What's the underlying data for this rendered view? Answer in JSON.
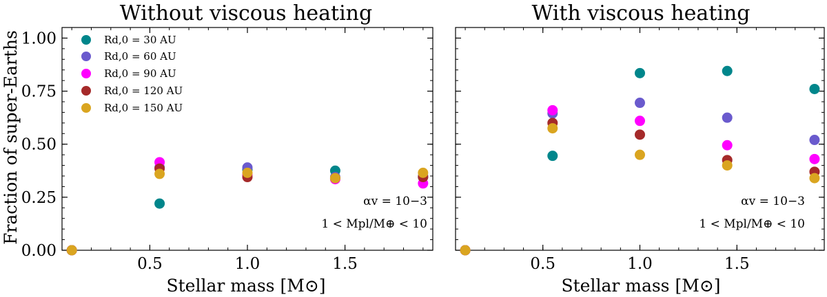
{
  "chart_data": [
    {
      "type": "scatter",
      "title": "Without viscous heating",
      "xlabel": "Stellar mass [M⊙]",
      "ylabel": "Fraction of super-Earths",
      "xlim": [
        0.05,
        1.95
      ],
      "ylim": [
        0.0,
        1.05
      ],
      "xticks": [
        "0.5",
        "1.0",
        "1.5"
      ],
      "yticks": [
        "0.00",
        "0.25",
        "0.50",
        "0.75",
        "1.00"
      ],
      "annotations": [
        "αv = 10−3",
        "1 < Mpl/M⊕ < 10"
      ],
      "legend": {
        "placement": "top-left"
      },
      "series": [
        {
          "name": "Rd,0 = 30 AU",
          "color": "#00868b",
          "x": [
            0.1,
            0.55,
            1.0,
            1.45,
            1.9
          ],
          "y": [
            0.0,
            0.22,
            0.38,
            0.375,
            0.345
          ]
        },
        {
          "name": "Rd,0 = 60 AU",
          "color": "#6a5acd",
          "x": [
            0.1,
            0.55,
            1.0,
            1.45,
            1.9
          ],
          "y": [
            0.0,
            0.39,
            0.39,
            0.345,
            0.35
          ]
        },
        {
          "name": "Rd,0 = 90 AU",
          "color": "#ff00ff",
          "x": [
            0.1,
            0.55,
            1.0,
            1.45,
            1.9
          ],
          "y": [
            0.0,
            0.415,
            0.355,
            0.335,
            0.315
          ]
        },
        {
          "name": "Rd,0 = 120 AU",
          "color": "#a52a2a",
          "x": [
            0.1,
            0.55,
            1.0,
            1.45,
            1.9
          ],
          "y": [
            0.0,
            0.385,
            0.345,
            0.34,
            0.345
          ]
        },
        {
          "name": "Rd,0 = 150 AU",
          "color": "#daa520",
          "x": [
            0.1,
            0.55,
            1.0,
            1.45,
            1.9
          ],
          "y": [
            0.0,
            0.36,
            0.365,
            0.34,
            0.365
          ]
        }
      ]
    },
    {
      "type": "scatter",
      "title": "With viscous heating",
      "xlabel": "Stellar mass [M⊙]",
      "ylabel": "",
      "xlim": [
        0.05,
        1.95
      ],
      "ylim": [
        0.0,
        1.05
      ],
      "xticks": [
        "0.5",
        "1.0",
        "1.5"
      ],
      "yticks": [],
      "annotations": [
        "αv = 10−3",
        "1 < Mpl/M⊕ < 10"
      ],
      "series": [
        {
          "name": "Rd,0 = 30 AU",
          "color": "#00868b",
          "x": [
            0.1,
            0.55,
            1.0,
            1.45,
            1.9
          ],
          "y": [
            0.0,
            0.445,
            0.835,
            0.845,
            0.76
          ]
        },
        {
          "name": "Rd,0 = 60 AU",
          "color": "#6a5acd",
          "x": [
            0.1,
            0.55,
            1.0,
            1.45,
            1.9
          ],
          "y": [
            0.0,
            0.645,
            0.695,
            0.625,
            0.52
          ]
        },
        {
          "name": "Rd,0 = 90 AU",
          "color": "#ff00ff",
          "x": [
            0.1,
            0.55,
            1.0,
            1.45,
            1.9
          ],
          "y": [
            0.0,
            0.66,
            0.61,
            0.495,
            0.43
          ]
        },
        {
          "name": "Rd,0 = 120 AU",
          "color": "#a52a2a",
          "x": [
            0.1,
            0.55,
            1.0,
            1.45,
            1.9
          ],
          "y": [
            0.0,
            0.6,
            0.545,
            0.425,
            0.37
          ]
        },
        {
          "name": "Rd,0 = 150 AU",
          "color": "#daa520",
          "x": [
            0.1,
            0.55,
            1.0,
            1.45,
            1.9
          ],
          "y": [
            0.0,
            0.575,
            0.45,
            0.4,
            0.34
          ]
        }
      ]
    }
  ]
}
